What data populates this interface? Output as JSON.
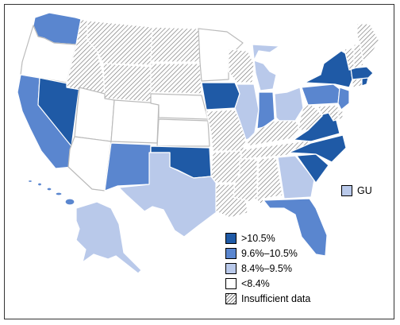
{
  "colors": {
    "gt10_5": "#1f5aa6",
    "c9_6_10_5": "#5a86cf",
    "c8_4_9_5": "#b9c9ea",
    "lt8_4": "#ffffff",
    "insufficient": "hatch",
    "stroke": "#ffffff",
    "outline": "#333333"
  },
  "legend": [
    {
      "label": ">10.5%",
      "category": "gt10_5"
    },
    {
      "label": "9.6%–10.5%",
      "category": "c9_6_10_5"
    },
    {
      "label": "8.4%–9.5%",
      "category": "c8_4_9_5"
    },
    {
      "label": "<8.4%",
      "category": "lt8_4"
    },
    {
      "label": "Insufficient data",
      "category": "insufficient"
    }
  ],
  "territories": [
    {
      "label": "GU",
      "category": "c8_4_9_5"
    }
  ],
  "states": {
    "WA": "c9_6_10_5",
    "OR": "lt8_4",
    "CA": "c9_6_10_5",
    "NV": "gt10_5",
    "ID": "insufficient",
    "MT": "insufficient",
    "WY": "insufficient",
    "UT": "lt8_4",
    "AZ": "lt8_4",
    "CO": "lt8_4",
    "NM": "c9_6_10_5",
    "ND": "insufficient",
    "SD": "insufficient",
    "NE": "lt8_4",
    "KS": "lt8_4",
    "OK": "gt10_5",
    "TX": "c8_4_9_5",
    "MN": "lt8_4",
    "IA": "gt10_5",
    "MO": "insufficient",
    "AR": "insufficient",
    "LA": "insufficient",
    "WI": "insufficient",
    "IL": "c8_4_9_5",
    "MI": "c8_4_9_5",
    "IN": "c9_6_10_5",
    "OH": "c8_4_9_5",
    "KY": "insufficient",
    "TN": "insufficient",
    "MS": "insufficient",
    "AL": "insufficient",
    "GA": "c8_4_9_5",
    "FL": "c9_6_10_5",
    "SC": "gt10_5",
    "NC": "gt10_5",
    "VA": "gt10_5",
    "WV": "insufficient",
    "PA": "c9_6_10_5",
    "NY": "gt10_5",
    "NJ": "c9_6_10_5",
    "DE": "insufficient",
    "MD": "insufficient",
    "CT": "insufficient",
    "RI": "gt10_5",
    "MA": "gt10_5",
    "VT": "insufficient",
    "NH": "insufficient",
    "ME": "insufficient",
    "AK": "c8_4_9_5",
    "HI": "c9_6_10_5"
  }
}
